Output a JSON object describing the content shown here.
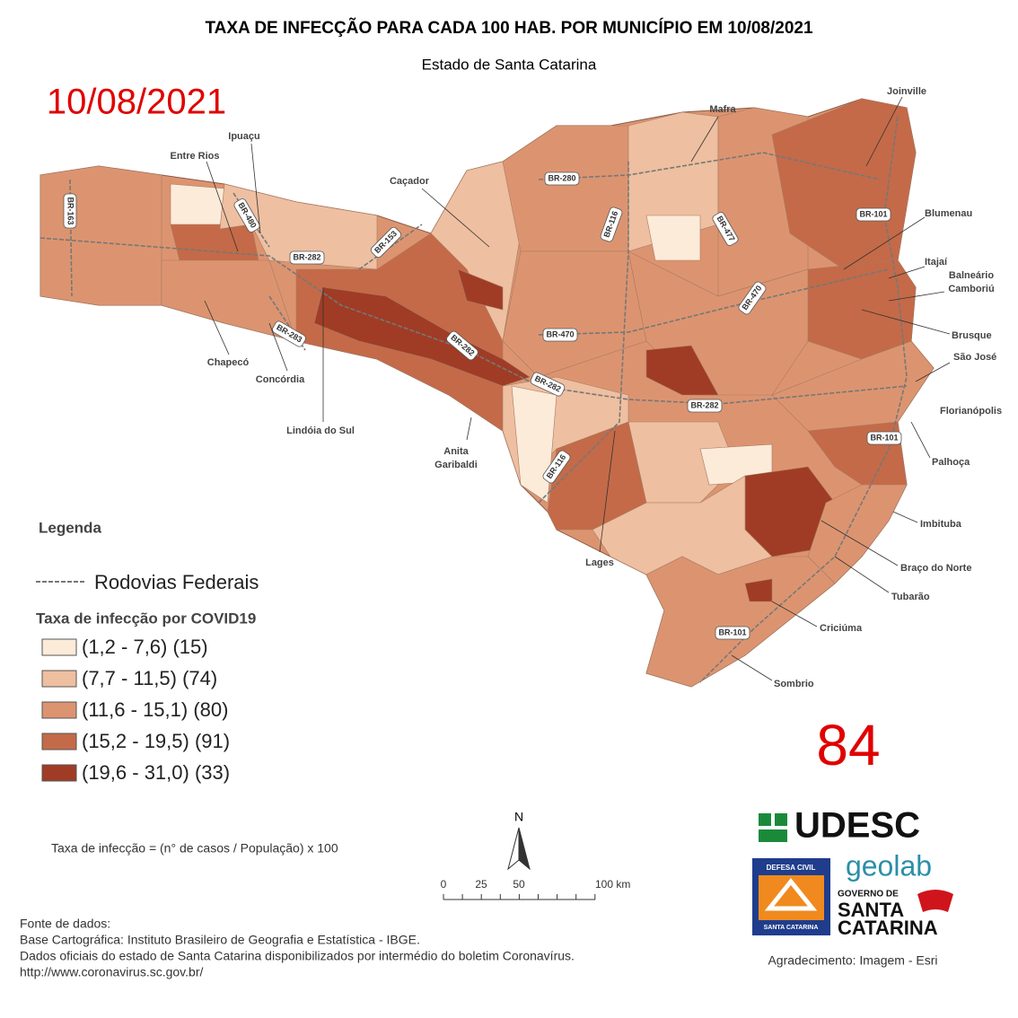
{
  "header": {
    "title": "TAXA DE INFECÇÃO PARA CADA 100 HAB. POR MUNICÍPIO EM 10/08/2021",
    "subtitle": "Estado de Santa Catarina",
    "date": "10/08/2021"
  },
  "map": {
    "cities": [
      "Ipuaçu",
      "Entre Rios",
      "Caçador",
      "Mafra",
      "Joinville",
      "Blumenau",
      "Itajaí",
      [
        "Balneário",
        "Camboriú"
      ],
      "Brusque",
      "São José",
      "Florianópolis",
      "Palhoça",
      "Imbituba",
      "Braço do Norte",
      "Tubarão",
      "Criciúma",
      "Sombrio",
      "Lages",
      [
        "Anita",
        "Garibaldi"
      ],
      "Lindóia do Sul",
      "Concórdia",
      "Chapecó"
    ],
    "roads": [
      "BR-163",
      "BR-480",
      "BR-282",
      "BR-153",
      "BR-283",
      "BR-282",
      "BR-280",
      "BR-116",
      "BR-477",
      "BR-101",
      "BR-470",
      "BR-470",
      "BR-282",
      "BR-282",
      "BR-101",
      "BR-116",
      "BR-101"
    ]
  },
  "legend": {
    "title": "Legenda",
    "roads_label": "Rodovias Federais",
    "classes_title": "Taxa de infecção por COVID19",
    "classes": [
      {
        "label": "(1,2 - 7,6) (15)",
        "color": "#fcebd9"
      },
      {
        "label": "(7,7 - 11,5) (74)",
        "color": "#eebfa0"
      },
      {
        "label": "(11,6 - 15,1) (80)",
        "color": "#dc9470"
      },
      {
        "label": "(15,2 - 19,5) (91)",
        "color": "#c46a48"
      },
      {
        "label": "(19,6 - 31,0) (33)",
        "color": "#a03c25"
      }
    ]
  },
  "formula": "Taxa de infecção = (n° de casos / População) x 100",
  "north": "N",
  "scale": [
    "0",
    "25",
    "50",
    "100 km"
  ],
  "sources": [
    "Fonte de dados:",
    "Base Cartográfica: Instituto Brasileiro de Geografia e Estatística - IBGE.",
    "Dados oficiais do estado de Santa Catarina disponibilizados por intermédio do boletim Coronavírus.",
    "http://www.coronavirus.sc.gov.br/"
  ],
  "counter": "84",
  "logos": {
    "udesc": "UDESC",
    "geolab": "geolab",
    "defesa_top": "DEFESA CIVIL",
    "defesa_bottom": "SANTA CATARINA",
    "gov_top": "GOVERNO DE",
    "gov_mid": "SANTA",
    "gov_bottom": "CATARINA"
  },
  "credit": "Agradecimento: Imagem - Esri"
}
